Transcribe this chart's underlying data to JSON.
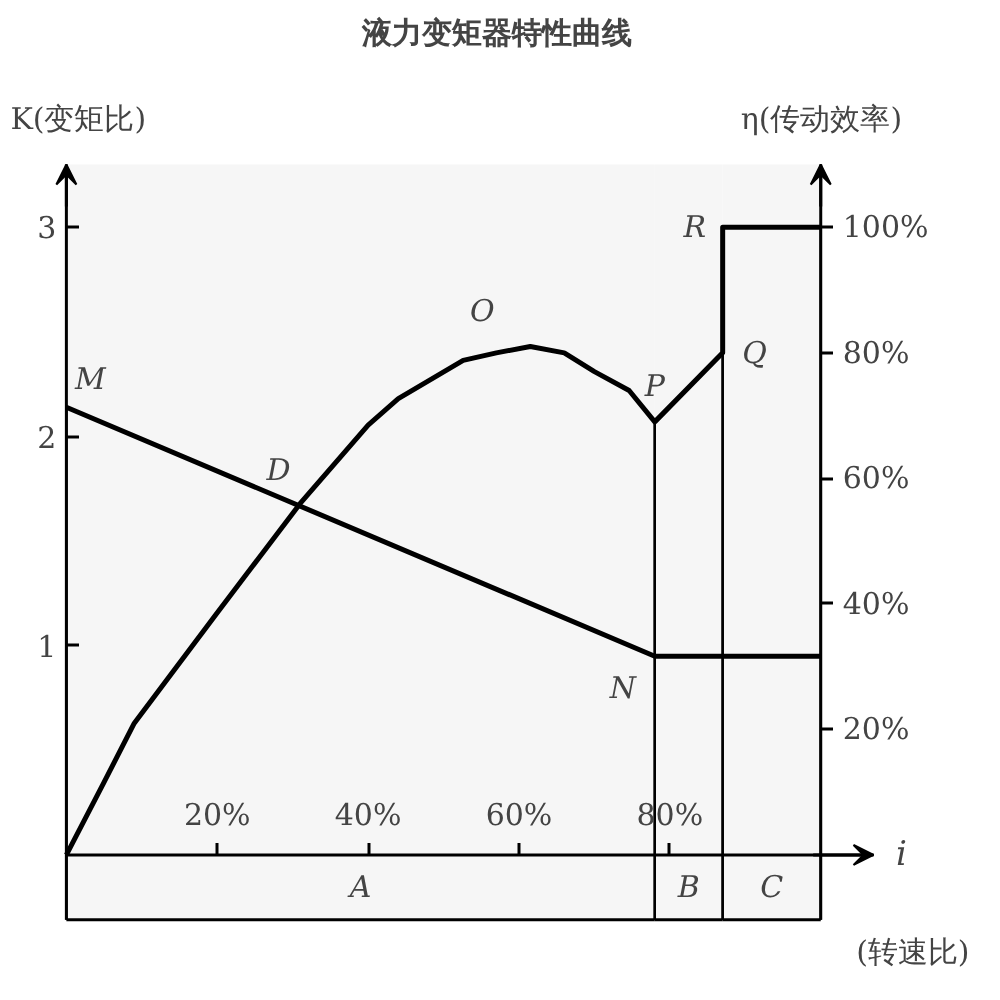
{
  "chart_data": {
    "type": "line",
    "title": "液力变矩器特性曲线",
    "xlabel": "i",
    "ylabel": "K(变矩比)",
    "y2label": "η(传动效率)",
    "xlim": [
      0,
      107
    ],
    "xticks": [
      {
        "value": 20,
        "label": "20%"
      },
      {
        "value": 40,
        "label": "40%"
      },
      {
        "value": 60,
        "label": "60%"
      },
      {
        "value": 80,
        "label": "80%"
      }
    ],
    "ylim": [
      0,
      3.3
    ],
    "yticks": [
      1,
      2,
      3
    ],
    "y2lim": [
      0,
      110
    ],
    "y2ticks": [
      {
        "value": 20,
        "label": "20%"
      },
      {
        "value": 40,
        "label": "40%"
      },
      {
        "value": 60,
        "label": "60%"
      },
      {
        "value": 80,
        "label": "80%"
      },
      {
        "value": 100,
        "label": "100%"
      }
    ],
    "series": [
      {
        "color": "#000000",
        "x": [
          0,
          78,
          100
        ],
        "values": [
          2.14,
          0.95,
          0.95
        ]
      },
      {
        "color": "#000000",
        "axis": "y2",
        "x": [
          0,
          5,
          9,
          14,
          20,
          31,
          40,
          44,
          52.6,
          57,
          61.5,
          66,
          70,
          74.6,
          78,
          87,
          87,
          100
        ],
        "values": [
          0,
          11.6,
          21,
          29,
          38.6,
          56,
          68.5,
          72.7,
          78.8,
          80,
          81,
          80,
          77,
          74,
          69,
          80,
          100,
          100
        ]
      }
    ],
    "bands": [
      {
        "axis": "x",
        "from": 0,
        "to": 78,
        "label": "A",
        "color": "#f6f6f6"
      },
      {
        "axis": "x",
        "from": 78,
        "to": 87,
        "label": "B",
        "color": "#f6f6f6"
      },
      {
        "axis": "x",
        "from": 87,
        "to": 100,
        "label": "C",
        "color": "#f6f6f6"
      }
    ],
    "annotations": [
      "(转速比)",
      {
        "text": "M",
        "x": 0,
        "y": 2.14
      },
      {
        "text": "D",
        "x": 31.3,
        "y": 1.67
      },
      {
        "text": "O",
        "x": 61.5,
        "y": 2.43
      },
      {
        "text": "P",
        "x": 78,
        "y": 2.07
      },
      {
        "text": "Q",
        "x": 87,
        "y": 2.4
      },
      {
        "text": "R",
        "x": 87,
        "y": 3.0
      },
      {
        "text": "N",
        "x": 78,
        "y": 0.95
      }
    ]
  }
}
